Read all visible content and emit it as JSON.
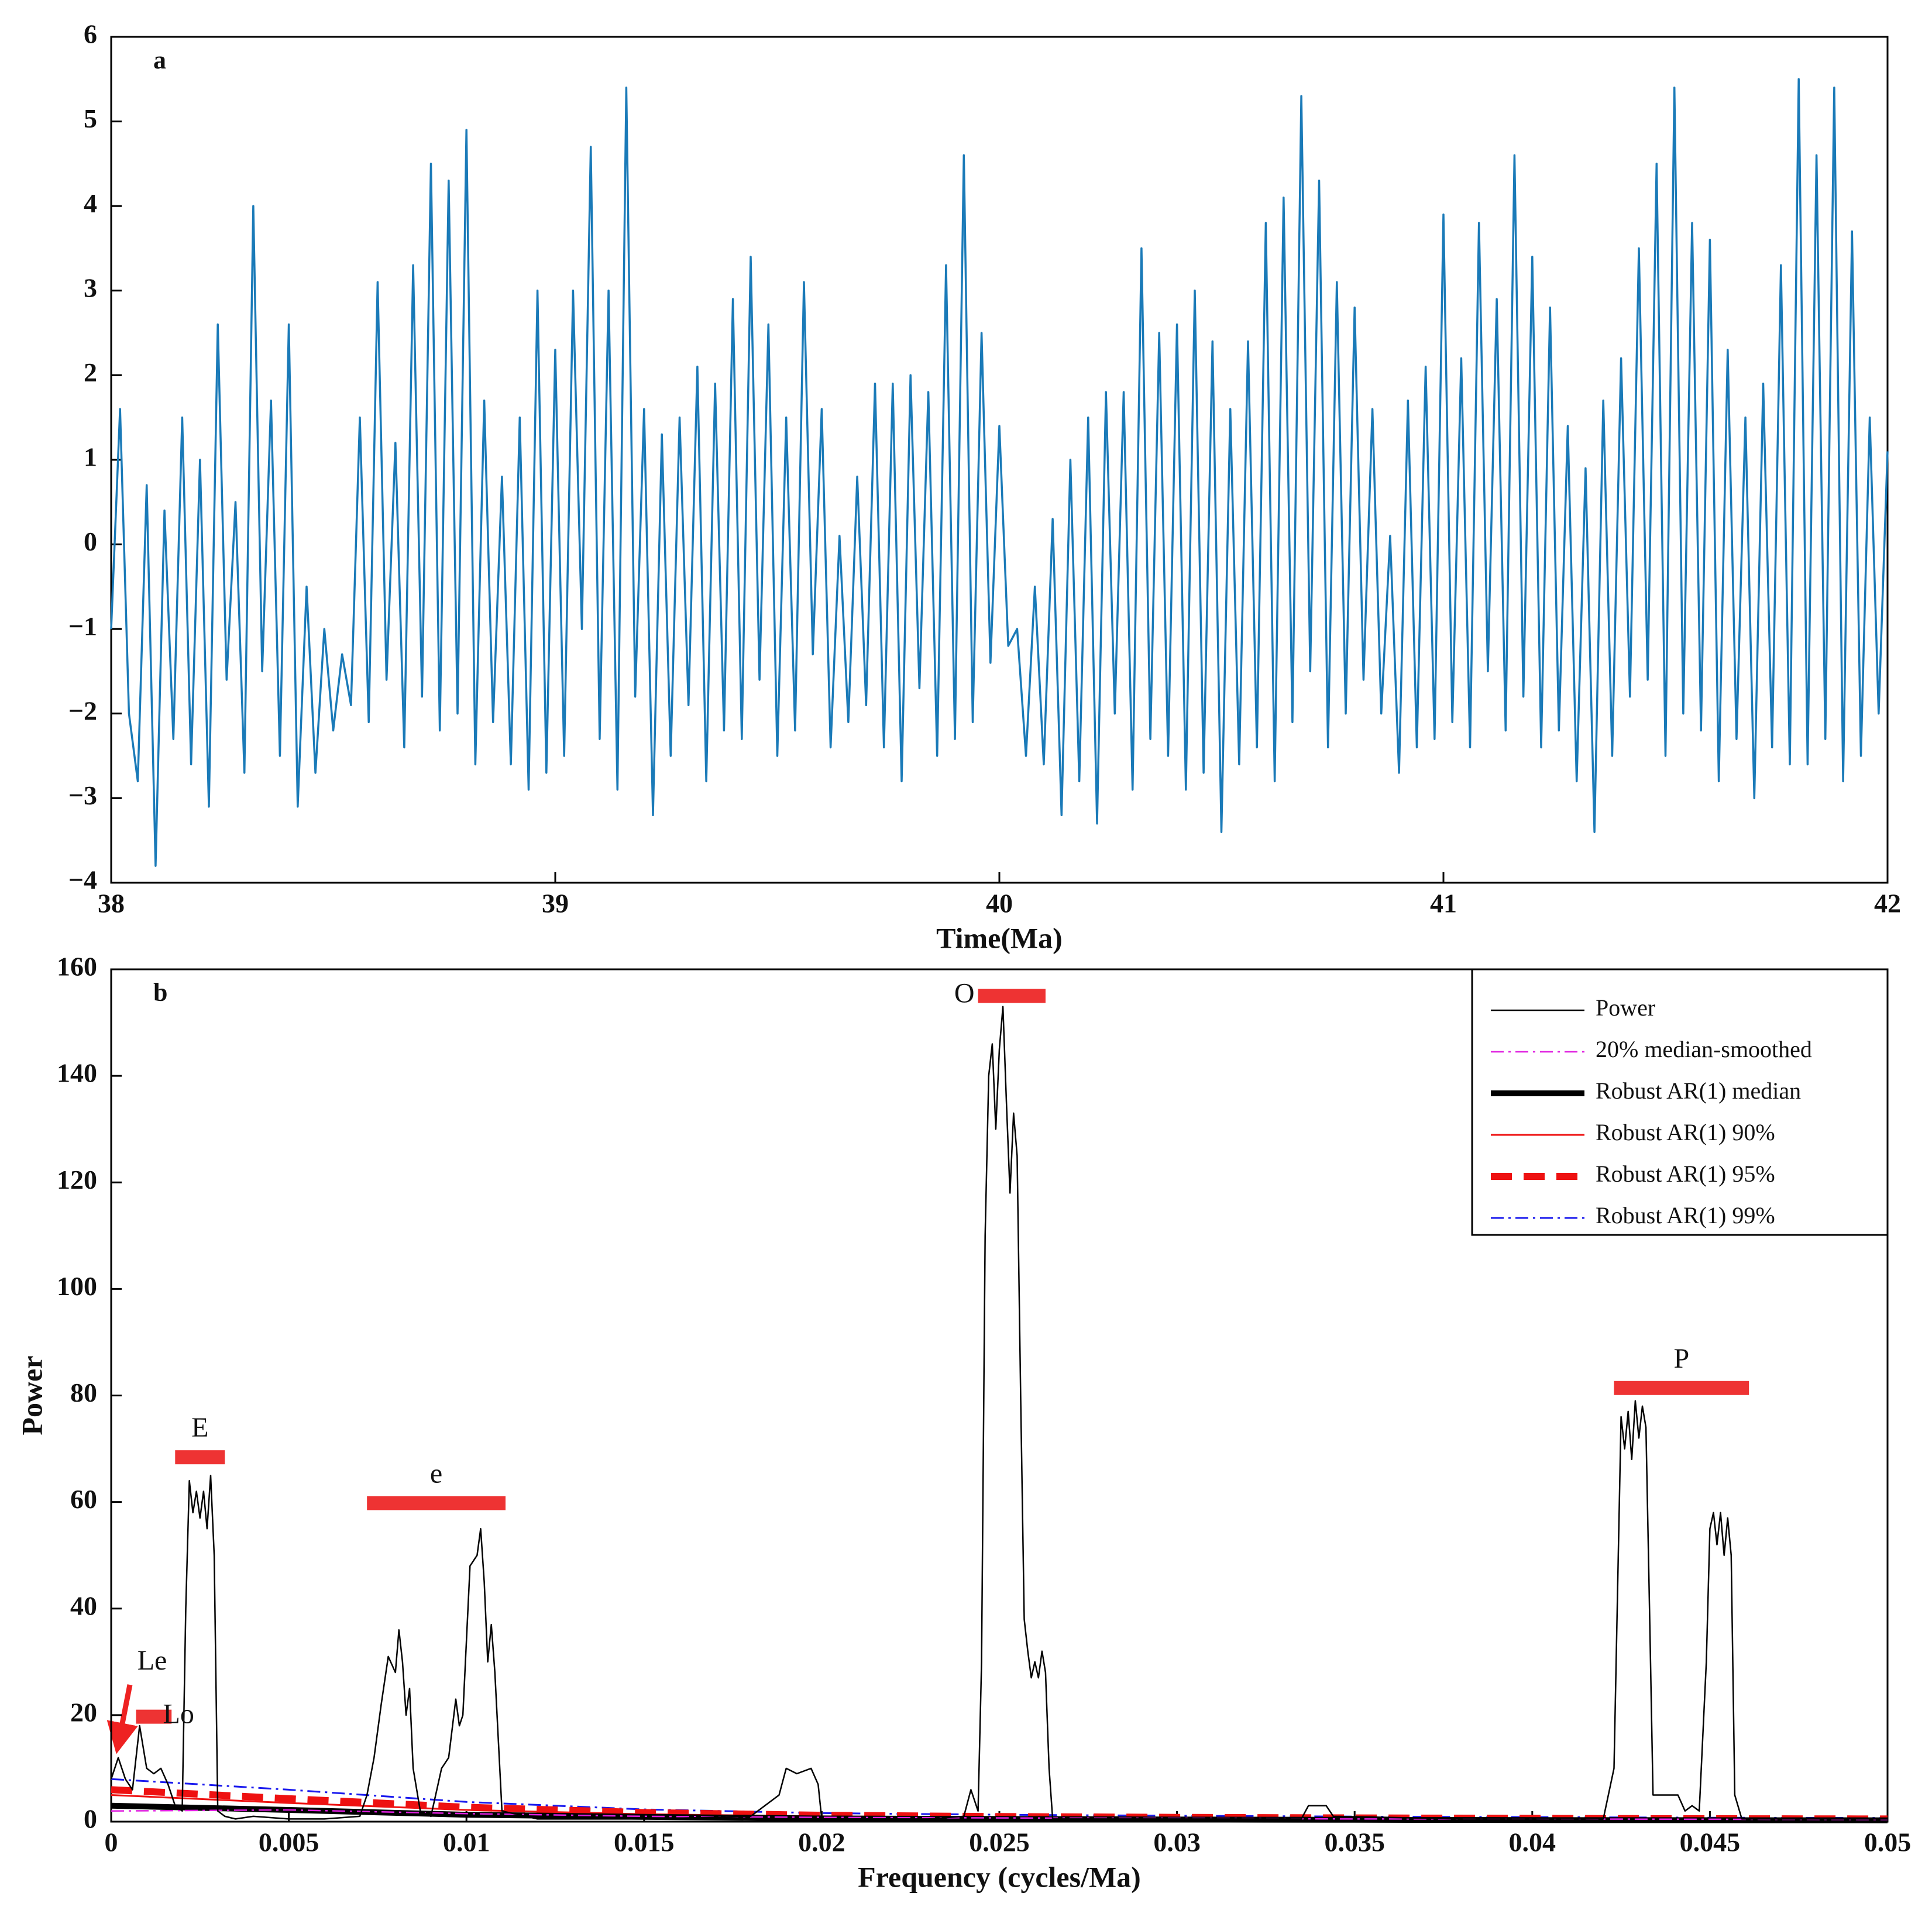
{
  "chart_data": [
    {
      "type": "line",
      "panel_label": "a",
      "xlabel": "Time(Ma)",
      "color": "#1a7ab8",
      "xlim": [
        38,
        42
      ],
      "ylim": [
        -4,
        6
      ],
      "xticks": [
        38,
        39,
        40,
        41,
        42
      ],
      "yticks": [
        {
          "value": -4,
          "label": "−4"
        },
        {
          "value": -3,
          "label": "−3"
        },
        {
          "value": -2,
          "label": "−2"
        },
        {
          "value": -1,
          "label": "−1"
        },
        0,
        1,
        2,
        3,
        4,
        5,
        6
      ],
      "x": [
        38,
        38.02,
        38.04,
        38.06,
        38.08,
        38.1,
        38.12,
        38.14,
        38.16,
        38.18,
        38.2,
        38.22,
        38.24,
        38.26,
        38.28,
        38.3,
        38.32,
        38.34,
        38.36,
        38.38,
        38.4,
        38.42,
        38.44,
        38.46,
        38.48,
        38.5,
        38.52,
        38.54,
        38.56,
        38.58,
        38.6,
        38.62,
        38.64,
        38.66,
        38.68,
        38.7,
        38.72,
        38.74,
        38.76,
        38.78,
        38.8,
        38.82,
        38.84,
        38.86,
        38.88,
        38.9,
        38.92,
        38.94,
        38.96,
        38.98,
        39,
        39.02,
        39.04,
        39.06,
        39.08,
        39.1,
        39.12,
        39.14,
        39.16,
        39.18,
        39.2,
        39.22,
        39.24,
        39.26,
        39.28,
        39.3,
        39.32,
        39.34,
        39.36,
        39.38,
        39.4,
        39.42,
        39.44,
        39.46,
        39.48,
        39.5,
        39.52,
        39.54,
        39.56,
        39.58,
        39.6,
        39.62,
        39.64,
        39.66,
        39.68,
        39.7,
        39.72,
        39.74,
        39.76,
        39.78,
        39.8,
        39.82,
        39.84,
        39.86,
        39.88,
        39.9,
        39.92,
        39.94,
        39.96,
        39.98,
        40,
        40.02,
        40.04,
        40.06,
        40.08,
        40.1,
        40.12,
        40.14,
        40.16,
        40.18,
        40.2,
        40.22,
        40.24,
        40.26,
        40.28,
        40.3,
        40.32,
        40.34,
        40.36,
        40.38,
        40.4,
        40.42,
        40.44,
        40.46,
        40.48,
        40.5,
        40.52,
        40.54,
        40.56,
        40.58,
        40.6,
        40.62,
        40.64,
        40.66,
        40.68,
        40.7,
        40.72,
        40.74,
        40.76,
        40.78,
        40.8,
        40.82,
        40.84,
        40.86,
        40.88,
        40.9,
        40.92,
        40.94,
        40.96,
        40.98,
        41,
        41.02,
        41.04,
        41.06,
        41.08,
        41.1,
        41.12,
        41.14,
        41.16,
        41.18,
        41.2,
        41.22,
        41.24,
        41.26,
        41.28,
        41.3,
        41.32,
        41.34,
        41.36,
        41.38,
        41.4,
        41.42,
        41.44,
        41.46,
        41.48,
        41.5,
        41.52,
        41.54,
        41.56,
        41.58,
        41.6,
        41.62,
        41.64,
        41.66,
        41.68,
        41.7,
        41.72,
        41.74,
        41.76,
        41.78,
        41.8,
        41.82,
        41.84,
        41.86,
        41.88,
        41.9,
        41.92,
        41.94,
        41.96,
        41.98,
        42
      ],
      "values": [
        -1,
        1.6,
        -2,
        -2.8,
        0.7,
        -3.8,
        0.4,
        -2.3,
        1.5,
        -2.6,
        1,
        -3.1,
        2.6,
        -1.6,
        0.5,
        -2.7,
        4,
        -1.5,
        1.7,
        -2.5,
        2.6,
        -3.1,
        -0.5,
        -2.7,
        -1,
        -2.2,
        -1.3,
        -1.9,
        1.5,
        -2.1,
        3.1,
        -1.6,
        1.2,
        -2.4,
        3.3,
        -1.8,
        4.5,
        -2.2,
        4.3,
        -2,
        4.9,
        -2.6,
        1.7,
        -2.1,
        0.8,
        -2.6,
        1.5,
        -2.9,
        3,
        -2.7,
        2.3,
        -2.5,
        3,
        -1,
        4.7,
        -2.3,
        3,
        -2.9,
        5.4,
        -1.8,
        1.6,
        -3.2,
        1.3,
        -2.5,
        1.5,
        -1.9,
        2.1,
        -2.8,
        1.9,
        -2.2,
        2.9,
        -2.3,
        3.4,
        -1.6,
        2.6,
        -2.5,
        1.5,
        -2.2,
        3.1,
        -1.3,
        1.6,
        -2.4,
        0.1,
        -2.1,
        0.8,
        -1.9,
        1.9,
        -2.4,
        1.9,
        -2.8,
        2,
        -1.7,
        1.8,
        -2.5,
        3.3,
        -2.3,
        4.6,
        -2.1,
        2.5,
        -1.4,
        1.4,
        -1.2,
        -1,
        -2.5,
        -0.5,
        -2.6,
        0.3,
        -3.2,
        1,
        -2.8,
        1.5,
        -3.3,
        1.8,
        -2,
        1.8,
        -2.9,
        3.5,
        -2.3,
        2.5,
        -2.5,
        2.6,
        -2.9,
        3,
        -2.7,
        2.4,
        -3.4,
        1.6,
        -2.6,
        2.4,
        -2.4,
        3.8,
        -2.8,
        4.1,
        -2.1,
        5.3,
        -1.5,
        4.3,
        -2.4,
        3.1,
        -2,
        2.8,
        -1.6,
        1.6,
        -2,
        0.1,
        -2.7,
        1.7,
        -2.4,
        2.1,
        -2.3,
        3.9,
        -2.1,
        2.2,
        -2.4,
        3.8,
        -1.5,
        2.9,
        -2.2,
        4.6,
        -1.8,
        3.4,
        -2.4,
        2.8,
        -2.2,
        1.4,
        -2.8,
        0.9,
        -3.4,
        1.7,
        -2.5,
        2.2,
        -1.8,
        3.5,
        -1.6,
        4.5,
        -2.5,
        5.4,
        -2,
        3.8,
        -2.2,
        3.6,
        -2.8,
        2.3,
        -2.3,
        1.5,
        -3,
        1.9,
        -2.4,
        3.3,
        -2.6,
        5.5,
        -2.6,
        4.6,
        -2.3,
        5.4,
        -2.8,
        3.7,
        -2.5,
        1.5,
        -2,
        1.1
      ]
    },
    {
      "type": "line",
      "panel_label": "b",
      "xlabel": "Frequency (cycles/Ma)",
      "ylabel": "Power",
      "xlim": [
        0,
        0.05
      ],
      "ylim": [
        0,
        160
      ],
      "xticks": [
        0,
        0.005,
        0.01,
        0.015,
        0.02,
        0.025,
        0.03,
        0.035,
        0.04,
        0.045,
        0.05
      ],
      "yticks": [
        0,
        20,
        40,
        60,
        80,
        100,
        120,
        140,
        160
      ],
      "legend": "upper right",
      "series": [
        {
          "name": "Power",
          "color": "#000000",
          "linestyle": "solid",
          "linewidth": 2.5,
          "x": [
            0,
            0.0002,
            0.0004,
            0.0006,
            0.0008,
            0.001,
            0.0012,
            0.0014,
            0.0016,
            0.0018,
            0.002,
            0.0021,
            0.0022,
            0.0023,
            0.0024,
            0.0025,
            0.0026,
            0.0027,
            0.0028,
            0.0029,
            0.003,
            0.0032,
            0.0035,
            0.004,
            0.005,
            0.006,
            0.007,
            0.0072,
            0.0074,
            0.0076,
            0.0078,
            0.008,
            0.0081,
            0.0082,
            0.0083,
            0.0084,
            0.0085,
            0.0087,
            0.009,
            0.0093,
            0.0095,
            0.0097,
            0.0098,
            0.0099,
            0.0101,
            0.0103,
            0.0104,
            0.0105,
            0.0106,
            0.0107,
            0.0108,
            0.011,
            0.012,
            0.015,
            0.018,
            0.0188,
            0.019,
            0.0193,
            0.0197,
            0.0199,
            0.02,
            0.023,
            0.024,
            0.0242,
            0.0244,
            0.0245,
            0.0246,
            0.0247,
            0.0248,
            0.0249,
            0.025,
            0.0251,
            0.0252,
            0.0253,
            0.0254,
            0.0255,
            0.0256,
            0.0257,
            0.0258,
            0.0259,
            0.026,
            0.0261,
            0.0262,
            0.0263,
            0.0264,
            0.0265,
            0.03,
            0.0335,
            0.0337,
            0.034,
            0.0342,
            0.0344,
            0.038,
            0.042,
            0.0423,
            0.0425,
            0.0426,
            0.0427,
            0.0428,
            0.0429,
            0.043,
            0.0431,
            0.0432,
            0.0433,
            0.0434,
            0.0437,
            0.0441,
            0.0443,
            0.0445,
            0.0447,
            0.0449,
            0.045,
            0.0451,
            0.0452,
            0.0453,
            0.0454,
            0.0455,
            0.0456,
            0.0457,
            0.0459,
            0.05
          ],
          "values": [
            8,
            12,
            8,
            6,
            18,
            10,
            9,
            10,
            7,
            3,
            2,
            40,
            64,
            58,
            62,
            57,
            62,
            55,
            65,
            50,
            2,
            1,
            0.5,
            1,
            0.5,
            0.5,
            1,
            5,
            12,
            22,
            31,
            28,
            36,
            30,
            20,
            25,
            10,
            2,
            1,
            10,
            12,
            23,
            18,
            20,
            48,
            50,
            55,
            45,
            30,
            37,
            28,
            2,
            0.5,
            0.5,
            1,
            5,
            10,
            9,
            10,
            7,
            0.5,
            0.5,
            1,
            6,
            2,
            30,
            110,
            140,
            146,
            130,
            145,
            153,
            135,
            118,
            133,
            125,
            80,
            38,
            32,
            27,
            30,
            27,
            32,
            28,
            10,
            0.5,
            0.5,
            0.5,
            3,
            3,
            3,
            1,
            0.5,
            0.5,
            10,
            76,
            70,
            77,
            68,
            79,
            72,
            78,
            74,
            40,
            5,
            5,
            5,
            2,
            3,
            2,
            30,
            55,
            58,
            52,
            58,
            50,
            57,
            50,
            5,
            0.5,
            0.5
          ]
        },
        {
          "name": "20% median-smoothed",
          "color": "#e020e0",
          "linestyle": "dashdot",
          "linewidth": 2.5,
          "x": [
            0,
            0.005,
            0.01,
            0.015,
            0.02,
            0.025,
            0.03,
            0.035,
            0.04,
            0.045,
            0.05
          ],
          "values": [
            2,
            2.2,
            1.5,
            1,
            0.8,
            0.7,
            0.6,
            0.5,
            0.5,
            0.45,
            0.4
          ]
        },
        {
          "name": "Robust AR(1) median",
          "color": "#000000",
          "linestyle": "solid",
          "linewidth": 10,
          "x": [
            0,
            0.005,
            0.01,
            0.015,
            0.02,
            0.025,
            0.03,
            0.035,
            0.04,
            0.045,
            0.05
          ],
          "values": [
            3,
            2.2,
            1.3,
            0.9,
            0.6,
            0.5,
            0.4,
            0.35,
            0.3,
            0.28,
            0.25
          ]
        },
        {
          "name": "Robust AR(1) 90%",
          "color": "#ee1111",
          "linestyle": "solid",
          "linewidth": 3,
          "x": [
            0,
            0.005,
            0.01,
            0.015,
            0.02,
            0.025,
            0.03,
            0.035,
            0.04,
            0.045,
            0.05
          ],
          "values": [
            5,
            3.5,
            2.2,
            1.4,
            1,
            0.8,
            0.65,
            0.55,
            0.5,
            0.45,
            0.4
          ]
        },
        {
          "name": "Robust AR(1) 95%",
          "color": "#ee1111",
          "linestyle": "dashed",
          "linewidth": 12,
          "x": [
            0,
            0.005,
            0.01,
            0.015,
            0.02,
            0.025,
            0.03,
            0.035,
            0.04,
            0.045,
            0.05
          ],
          "values": [
            6,
            4.3,
            2.7,
            1.7,
            1.2,
            0.95,
            0.8,
            0.7,
            0.6,
            0.55,
            0.5
          ]
        },
        {
          "name": "Robust AR(1) 99%",
          "color": "#1a1aee",
          "linestyle": "dashdot",
          "linewidth": 3,
          "x": [
            0,
            0.005,
            0.01,
            0.015,
            0.02,
            0.025,
            0.03,
            0.035,
            0.04,
            0.045,
            0.05
          ],
          "values": [
            8,
            6,
            3.7,
            2.3,
            1.6,
            1.3,
            1.1,
            0.95,
            0.85,
            0.75,
            0.7
          ]
        }
      ],
      "annotations": [
        {
          "text": "E",
          "x": [
            0.0018,
            0.0032
          ],
          "y": 68.4,
          "label_position": "above"
        },
        {
          "text": "e",
          "x": [
            0.0072,
            0.0111
          ],
          "y": 59.8,
          "label_position": "above"
        },
        {
          "text": "O",
          "x": [
            0.0244,
            0.0263
          ],
          "y": 155,
          "label_position": "left"
        },
        {
          "text": "P",
          "x": [
            0.0423,
            0.0461
          ],
          "y": 81.4,
          "label_position": "above"
        },
        {
          "text": "Lo",
          "x": [
            0.0007,
            0.0017
          ],
          "y": 19.7,
          "label_position": "right"
        },
        {
          "text": "Le",
          "label_position": "arrow"
        }
      ]
    }
  ]
}
